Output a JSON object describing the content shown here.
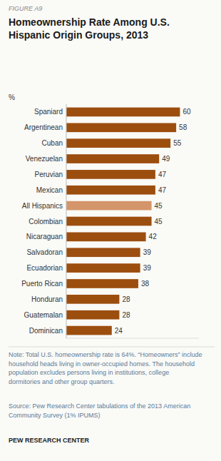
{
  "chart_data": {
    "type": "bar",
    "orientation": "horizontal",
    "title": "Homeownership  Rate Among U.S.\nHispanic Origin Groups, 2013",
    "xlabel": "%",
    "categories": [
      "Spaniard",
      "Argentinean",
      "Cuban",
      "Venezuelan",
      "Peruvian",
      "Mexican",
      "All Hispanics",
      "Colombian",
      "Nicaraguan",
      "Salvadoran",
      "Ecuadorian",
      "Puerto Rican",
      "Honduran",
      "Guatemalan",
      "Dominican"
    ],
    "values": [
      60,
      58,
      55,
      49,
      47,
      47,
      45,
      45,
      42,
      39,
      39,
      38,
      28,
      28,
      24
    ],
    "colors": [
      "#9C4E0F",
      "#9C4E0F",
      "#9C4E0F",
      "#9C4E0F",
      "#9C4E0F",
      "#9C4E0F",
      "#D4956A",
      "#9C4E0F",
      "#9C4E0F",
      "#9C4E0F",
      "#9C4E0F",
      "#9C4E0F",
      "#9C4E0F",
      "#9C4E0F",
      "#9C4E0F"
    ],
    "xlim": [
      0,
      70
    ],
    "data_labels": true,
    "tick_labels": "y",
    "grid": false,
    "annotations": [
      "FIGURE A9",
      "Note: Total U.S. homeownership rate is 64%. “Homeowners” include\nhousehold heads living in owner-occupied homes. The household\npopulation excludes persons living in institutions, college\ndormitories and other group quarters.",
      "Source: Pew Research Center tabulations of the 2013 American\nCommunity Survey (1% IPUMS)",
      "PEW RESEARCH CENTER"
    ]
  }
}
